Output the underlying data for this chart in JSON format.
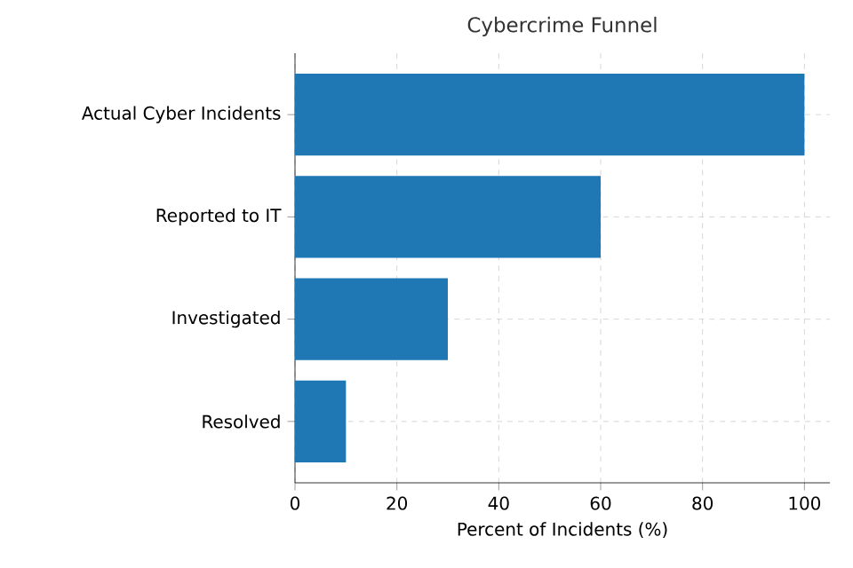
{
  "chart_data": {
    "type": "bar",
    "orientation": "horizontal",
    "title": "Cybercrime Funnel",
    "xlabel": "Percent of Incidents (%)",
    "categories": [
      "Actual Cyber Incidents",
      "Reported to IT",
      "Investigated",
      "Resolved"
    ],
    "values": [
      100,
      60,
      30,
      10
    ],
    "color": "#1f77b4",
    "xlim": [
      0,
      105
    ],
    "xticks": [
      0,
      20,
      40,
      60,
      80,
      100
    ],
    "grid": true
  }
}
